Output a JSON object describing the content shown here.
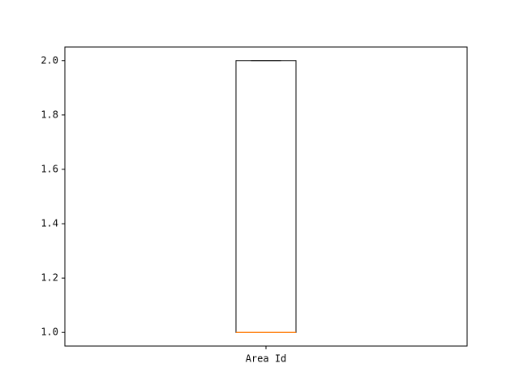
{
  "chart_data": {
    "type": "box",
    "categories": [
      "Area Id"
    ],
    "boxes": [
      {
        "category": "Area Id",
        "whisker_low": 1.0,
        "q1": 1.0,
        "median": 1.0,
        "q3": 2.0,
        "whisker_high": 2.0
      }
    ],
    "ylim": [
      0.95,
      2.05
    ],
    "yticks": [
      "1.0",
      "1.2",
      "1.4",
      "1.6",
      "1.8",
      "2.0"
    ],
    "xlabel": "",
    "ylabel": "",
    "grid": false,
    "colors": {
      "box": "#000000",
      "median": "#ff7f0e",
      "axes": "#000000"
    }
  }
}
